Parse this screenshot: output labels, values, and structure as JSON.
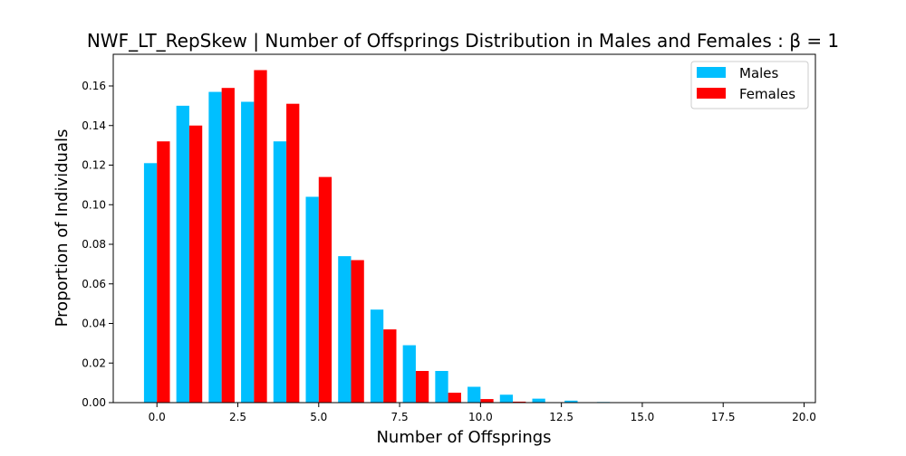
{
  "chart_data": {
    "type": "bar",
    "title": "NWF_LT_RepSkew | Number of Offsprings Distribution in Males and Females : β = 1",
    "xlabel": "Number of Offsprings",
    "ylabel": "Proportion of Individuals",
    "xlim": [
      -1.35,
      20.35
    ],
    "ylim": [
      0,
      0.176
    ],
    "x_ticks": [
      0,
      2.5,
      5,
      7.5,
      10,
      12.5,
      15,
      17.5,
      20
    ],
    "x_tick_labels": [
      "0.0",
      "2.5",
      "5.0",
      "7.5",
      "10.0",
      "12.5",
      "15.0",
      "17.5",
      "20.0"
    ],
    "y_ticks": [
      0,
      0.02,
      0.04,
      0.06,
      0.08,
      0.1,
      0.12,
      0.14,
      0.16
    ],
    "y_tick_labels": [
      "0.00",
      "0.02",
      "0.04",
      "0.06",
      "0.08",
      "0.10",
      "0.12",
      "0.14",
      "0.16"
    ],
    "grid": false,
    "legend_position": "top-right",
    "bar_width": 0.4,
    "x": [
      0,
      1,
      2,
      3,
      4,
      5,
      6,
      7,
      8,
      9,
      10,
      11,
      12,
      13,
      14,
      15,
      16,
      17,
      18,
      19,
      20
    ],
    "series": [
      {
        "name": "Males",
        "color": "#00BFFF",
        "offset": -0.2,
        "values": [
          0.121,
          0.15,
          0.157,
          0.152,
          0.132,
          0.104,
          0.074,
          0.047,
          0.029,
          0.016,
          0.008,
          0.004,
          0.002,
          0.001,
          0.0003,
          0.0001,
          0,
          0,
          0,
          0,
          0
        ]
      },
      {
        "name": "Females",
        "color": "#FF0000",
        "offset": 0.2,
        "values": [
          0.132,
          0.14,
          0.159,
          0.168,
          0.151,
          0.114,
          0.072,
          0.037,
          0.016,
          0.005,
          0.0018,
          0.0005,
          0.0001,
          0,
          0,
          0,
          0,
          0,
          0,
          0,
          0
        ]
      }
    ]
  }
}
